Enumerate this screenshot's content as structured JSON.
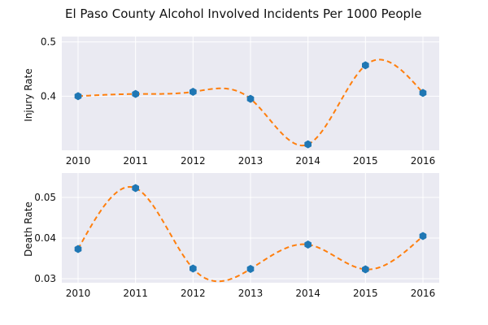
{
  "title": "El Paso County Alcohol Involved Incidents Per 1000 People",
  "colors": {
    "panel_bg": "#eaeaf2",
    "grid": "#ffffff",
    "marker": "#1f77b4",
    "curve": "#ff7f0e"
  },
  "chart_data": [
    {
      "type": "line",
      "title": "El Paso County Alcohol Involved Incidents Per 1000 People",
      "xlabel": "",
      "ylabel": "Injury Rate",
      "x": [
        2010,
        2011,
        2012,
        2013,
        2014,
        2015,
        2016
      ],
      "x_tick_labels": [
        "2010",
        "2011",
        "2012",
        "2013",
        "2014",
        "2015",
        "2016"
      ],
      "ylim": [
        0.3,
        0.51
      ],
      "y_ticks": [
        0.4,
        0.5
      ],
      "y_tick_labels": [
        "0.4",
        "0.5"
      ],
      "grid": true,
      "series": [
        {
          "style": "markers (hexagon) with smooth dashed interpolating curve",
          "values": [
            0.4,
            0.404,
            0.408,
            0.395,
            0.311,
            0.457,
            0.406
          ]
        }
      ]
    },
    {
      "type": "line",
      "xlabel": "",
      "ylabel": "Death Rate",
      "x": [
        2010,
        2011,
        2012,
        2013,
        2014,
        2015,
        2016
      ],
      "x_tick_labels": [
        "2010",
        "2011",
        "2012",
        "2013",
        "2014",
        "2015",
        "2016"
      ],
      "ylim": [
        0.029,
        0.056
      ],
      "y_ticks": [
        0.03,
        0.04,
        0.05
      ],
      "y_tick_labels": [
        "0.03",
        "0.04",
        "0.05"
      ],
      "grid": true,
      "series": [
        {
          "style": "markers (hexagon) with smooth dashed interpolating curve",
          "values": [
            0.0373,
            0.0523,
            0.0325,
            0.0324,
            0.0384,
            0.0323,
            0.0405
          ]
        }
      ]
    }
  ]
}
